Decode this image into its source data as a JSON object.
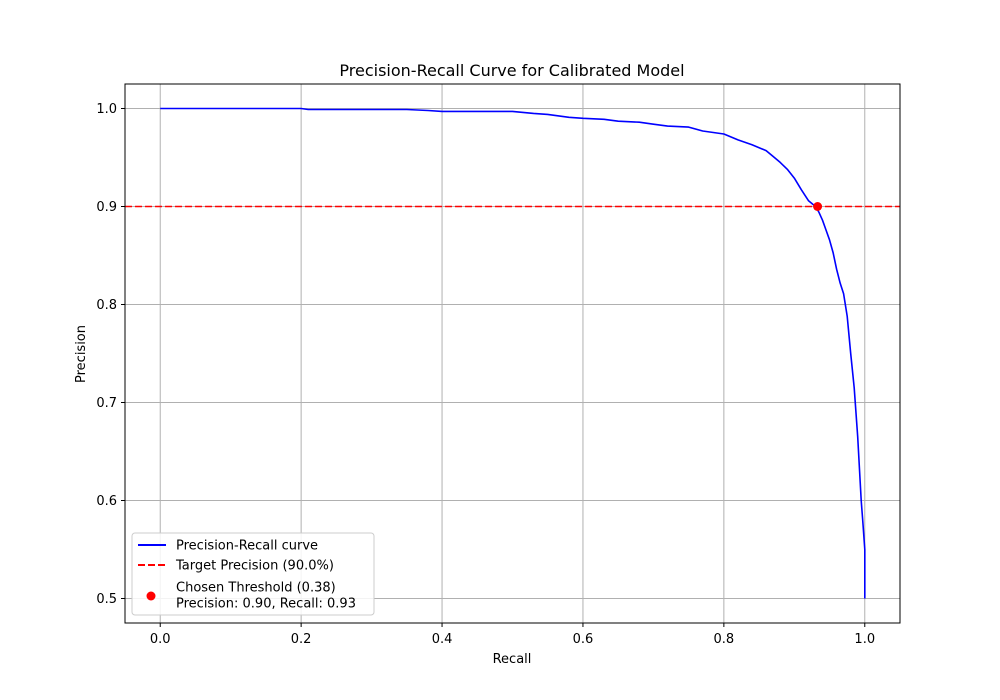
{
  "chart_data": {
    "type": "line",
    "title": "Precision-Recall Curve for Calibrated Model",
    "xlabel": "Recall",
    "ylabel": "Precision",
    "xlim": [
      -0.05,
      1.05
    ],
    "ylim": [
      0.475,
      1.025
    ],
    "xticks": [
      0.0,
      0.2,
      0.4,
      0.6,
      0.8,
      1.0
    ],
    "xtick_labels": [
      "0.0",
      "0.2",
      "0.4",
      "0.6",
      "0.8",
      "1.0"
    ],
    "yticks": [
      0.5,
      0.6,
      0.7,
      0.8,
      0.9,
      1.0
    ],
    "ytick_labels": [
      "0.5",
      "0.6",
      "0.7",
      "0.8",
      "0.9",
      "1.0"
    ],
    "grid": true,
    "legend_position": "lower-left",
    "series": [
      {
        "name": "Precision-Recall curve",
        "kind": "line",
        "color": "#0000ff",
        "x": [
          0.0,
          0.1,
          0.2,
          0.21,
          0.3,
          0.35,
          0.38,
          0.4,
          0.45,
          0.5,
          0.53,
          0.55,
          0.58,
          0.6,
          0.63,
          0.65,
          0.68,
          0.7,
          0.72,
          0.75,
          0.77,
          0.8,
          0.82,
          0.84,
          0.86,
          0.87,
          0.88,
          0.89,
          0.9,
          0.91,
          0.92,
          0.93,
          0.935,
          0.94,
          0.945,
          0.95,
          0.955,
          0.96,
          0.965,
          0.97,
          0.975,
          0.98,
          0.985,
          0.99,
          0.995,
          0.997,
          1.0,
          1.0
        ],
        "y": [
          1.0,
          1.0,
          1.0,
          0.999,
          0.999,
          0.999,
          0.998,
          0.997,
          0.997,
          0.997,
          0.995,
          0.994,
          0.991,
          0.99,
          0.989,
          0.987,
          0.986,
          0.984,
          0.982,
          0.981,
          0.977,
          0.974,
          0.968,
          0.963,
          0.957,
          0.951,
          0.945,
          0.938,
          0.929,
          0.917,
          0.906,
          0.9,
          0.894,
          0.886,
          0.876,
          0.866,
          0.853,
          0.836,
          0.822,
          0.811,
          0.788,
          0.75,
          0.715,
          0.665,
          0.6,
          0.58,
          0.55,
          0.5
        ]
      },
      {
        "name": "Target Precision (90.0%)",
        "kind": "hline",
        "color": "#ff0000",
        "y": 0.9
      },
      {
        "name": "Chosen Threshold (0.38)",
        "name_line2": "Precision: 0.90, Recall: 0.93",
        "kind": "point",
        "color": "#ff0000",
        "x": 0.933,
        "y": 0.9
      }
    ]
  }
}
